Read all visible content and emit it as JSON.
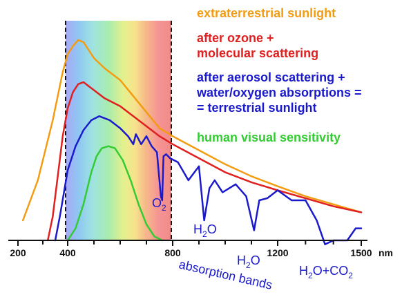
{
  "chart_data": {
    "type": "line",
    "x_unit": "nm",
    "x_ticks": [
      200,
      400,
      800,
      1200,
      1500
    ],
    "xlim": [
      200,
      1550
    ],
    "visible_band": [
      380,
      780
    ],
    "series": [
      {
        "name": "extraterrestrial sunlight",
        "color": "#f39c12",
        "x": [
          220,
          250,
          280,
          310,
          340,
          360,
          380,
          400,
          420,
          440,
          460,
          480,
          500,
          540,
          600,
          650,
          700,
          750,
          800,
          900,
          1000,
          1100,
          1200,
          1300,
          1400,
          1500
        ],
        "y": [
          0.1,
          0.2,
          0.3,
          0.45,
          0.6,
          0.72,
          0.84,
          0.93,
          0.97,
          1.0,
          0.99,
          0.95,
          0.91,
          0.86,
          0.8,
          0.72,
          0.64,
          0.56,
          0.52,
          0.45,
          0.38,
          0.32,
          0.27,
          0.22,
          0.18,
          0.14
        ]
      },
      {
        "name": "after ozone + molecular scattering",
        "color": "#e02020",
        "x": [
          320,
          340,
          360,
          380,
          400,
          420,
          440,
          460,
          480,
          500,
          540,
          600,
          650,
          700,
          750,
          800,
          900,
          1000,
          1100,
          1200,
          1300,
          1400,
          1500
        ],
        "y": [
          0.0,
          0.12,
          0.32,
          0.52,
          0.66,
          0.74,
          0.78,
          0.79,
          0.77,
          0.75,
          0.71,
          0.67,
          0.62,
          0.57,
          0.52,
          0.48,
          0.41,
          0.34,
          0.29,
          0.25,
          0.21,
          0.17,
          0.14
        ]
      },
      {
        "name": "after aerosol scattering + water/oxygen absorptions = = terrestrial sunlight",
        "color": "#1a1acc",
        "x": [
          350,
          370,
          400,
          430,
          460,
          490,
          520,
          560,
          600,
          630,
          650,
          660,
          680,
          700,
          720,
          740,
          755,
          760,
          765,
          775,
          790,
          820,
          860,
          900,
          920,
          940,
          960,
          990,
          1040,
          1080,
          1110,
          1130,
          1160,
          1200,
          1250,
          1300,
          1340,
          1370,
          1400,
          1450,
          1480,
          1500
        ],
        "y": [
          0.0,
          0.13,
          0.35,
          0.47,
          0.55,
          0.6,
          0.62,
          0.6,
          0.56,
          0.52,
          0.48,
          0.53,
          0.48,
          0.52,
          0.47,
          0.44,
          0.22,
          0.2,
          0.42,
          0.43,
          0.41,
          0.39,
          0.3,
          0.37,
          0.1,
          0.26,
          0.3,
          0.24,
          0.28,
          0.22,
          0.05,
          0.2,
          0.21,
          0.25,
          0.2,
          0.2,
          0.1,
          -0.02,
          0.0,
          0.0,
          0.06,
          0.06
        ]
      },
      {
        "name": "human visual sensitivity",
        "color": "#33cc33",
        "x": [
          400,
          430,
          460,
          490,
          510,
          530,
          555,
          580,
          610,
          640,
          670,
          700,
          730,
          760
        ],
        "y": [
          0.0,
          0.06,
          0.18,
          0.34,
          0.42,
          0.46,
          0.47,
          0.46,
          0.4,
          0.3,
          0.18,
          0.08,
          0.02,
          0.0
        ]
      }
    ],
    "annotations": [
      {
        "text": "O",
        "sub": "2",
        "x": 760
      },
      {
        "text": "H",
        "sub": "2",
        "tail": "O",
        "x": 930
      },
      {
        "text": "H",
        "sub": "2",
        "tail": "O",
        "x": 1120
      },
      {
        "text": "H",
        "sub": "2",
        "tail": "O+CO",
        "sub2": "2",
        "x": 1400
      },
      {
        "text": "absorption bands"
      }
    ]
  }
}
